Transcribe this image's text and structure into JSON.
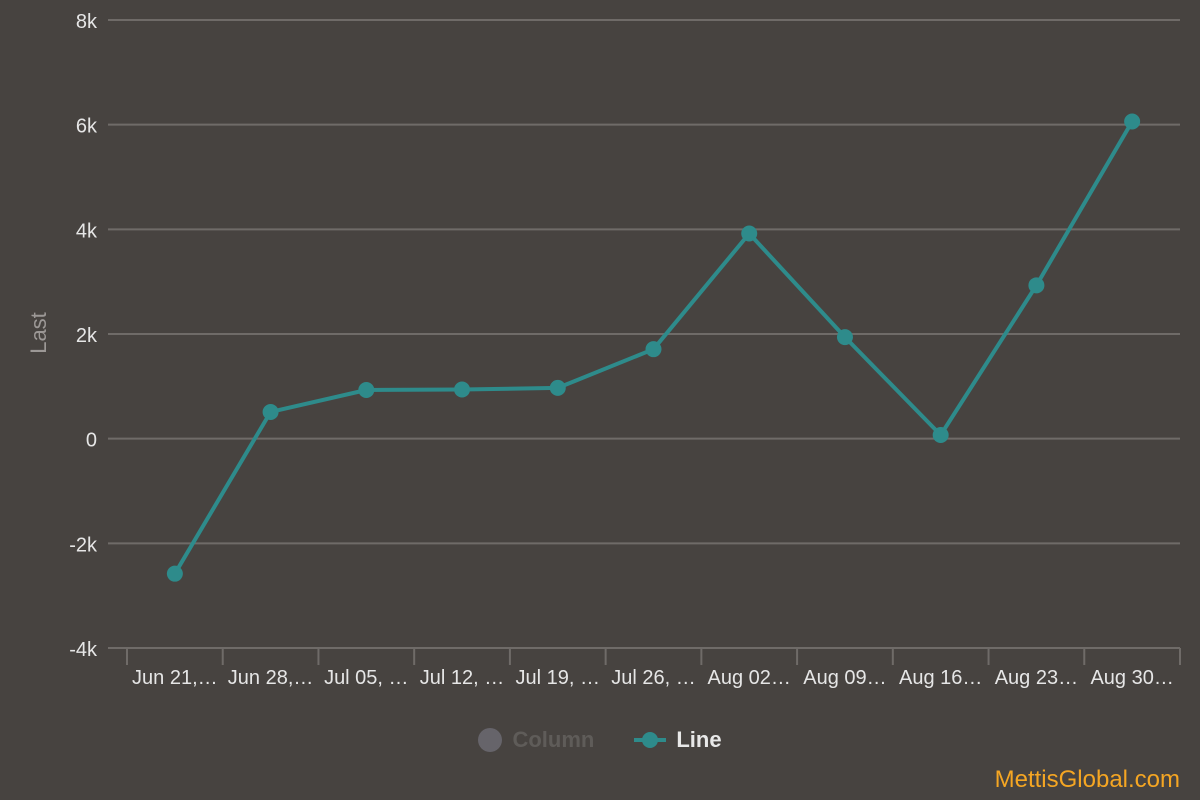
{
  "chart_data": {
    "type": "line",
    "title": "",
    "xlabel": "",
    "ylabel": "Last",
    "ylim": [
      -4000,
      8000
    ],
    "y_ticks": [
      -4000,
      -2000,
      0,
      2000,
      4000,
      6000,
      8000
    ],
    "y_tick_labels": [
      "-4k",
      "-2k",
      "0",
      "2k",
      "4k",
      "6k",
      "8k"
    ],
    "grid": true,
    "categories": [
      "Jun 21,…",
      "Jun 28,…",
      "Jul 05, …",
      "Jul 12, …",
      "Jul 19, …",
      "Jul 26, …",
      "Aug 02…",
      "Aug 09…",
      "Aug 16…",
      "Aug 23…",
      "Aug 30…"
    ],
    "series": [
      {
        "name": "Line",
        "color": "#2e8b8b",
        "values": [
          -2580,
          510,
          930,
          940,
          970,
          1710,
          3920,
          1940,
          70,
          2930,
          6060
        ]
      }
    ],
    "legend": {
      "position": "bottom-center",
      "items": [
        {
          "label": "Column",
          "enabled": false,
          "symbol": "circle"
        },
        {
          "label": "Line",
          "enabled": true,
          "symbol": "line-marker"
        }
      ]
    }
  },
  "credits": {
    "text": "MettisGlobal.com"
  },
  "colors": {
    "background": "#474340",
    "gridline": "#6f6b68",
    "axis_text": "#e6e6e6",
    "axis_title": "#9c9896",
    "series_line": "#2e8b8b",
    "credits": "#f5a623"
  }
}
